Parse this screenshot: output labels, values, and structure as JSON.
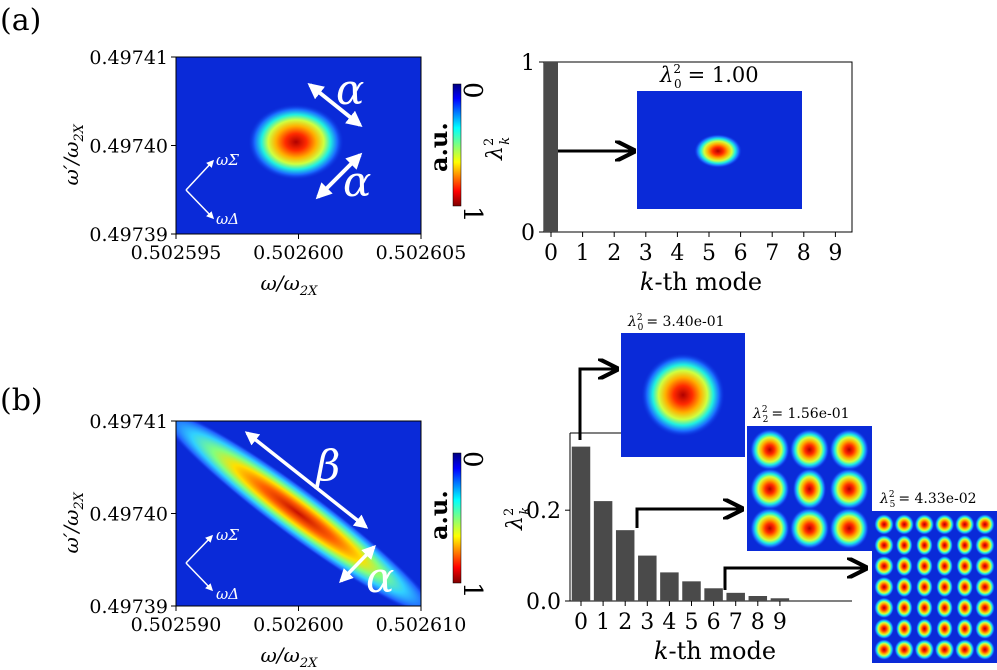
{
  "panel_labels": {
    "a": "(a)",
    "b": "(b)"
  },
  "colorbar": {
    "label": "a.u.",
    "tick_top": "0",
    "tick_bottom": "1"
  },
  "arrows": {
    "alpha": "α",
    "beta": "β"
  },
  "basis": {
    "sigma": "ωΣ",
    "delta": "ωΔ"
  },
  "axis_text": {
    "omega_x": "ω/ω",
    "omega_y": "ω′/ω",
    "sub_2X": "2X",
    "lambda": "λ",
    "lambda_sub": "k",
    "lambda_sup": "2",
    "kth_k": "k",
    "kth_rest": "-th mode"
  },
  "chart_data": [
    {
      "id": "a-left",
      "type": "heatmap",
      "xlabel": "ω/ω2X",
      "ylabel": "ω′/ω2X",
      "x_ticks": [
        "0.502595",
        "0.502600",
        "0.502605"
      ],
      "y_ticks": [
        "0.49741",
        "0.49740",
        "0.49739"
      ],
      "xlim": [
        0.502595,
        0.502605
      ],
      "ylim": [
        0.49739,
        0.49741
      ],
      "colorbar_label": "a.u."
    },
    {
      "id": "a-right",
      "type": "bar",
      "xlabel": "k-th mode",
      "ylabel": "λk2",
      "categories": [
        "0",
        "1",
        "2",
        "3",
        "4",
        "5",
        "6",
        "7",
        "8",
        "9"
      ],
      "values": [
        1.0,
        0,
        0,
        0,
        0,
        0,
        0,
        0,
        0,
        0
      ],
      "y_ticks": [
        "0",
        "1"
      ],
      "ylim": [
        0,
        1
      ],
      "inset_title": "λ02 = 1.00",
      "inset_title_parts": {
        "sub": "0",
        "value": "= 1.00"
      }
    },
    {
      "id": "b-left",
      "type": "heatmap",
      "xlabel": "ω/ω2X",
      "ylabel": "ω′/ω2X",
      "x_ticks": [
        "0.502590",
        "0.502600",
        "0.502610"
      ],
      "y_ticks": [
        "0.49741",
        "0.49740",
        "0.49739"
      ],
      "xlim": [
        0.50259,
        0.50261
      ],
      "ylim": [
        0.49739,
        0.49741
      ],
      "colorbar_label": "a.u."
    },
    {
      "id": "b-right",
      "type": "bar",
      "xlabel": "k-th mode",
      "ylabel": "λk2",
      "categories": [
        "0",
        "1",
        "2",
        "3",
        "4",
        "5",
        "6",
        "7",
        "8",
        "9"
      ],
      "values": [
        0.34,
        0.22,
        0.156,
        0.1,
        0.063,
        0.0433,
        0.028,
        0.018,
        0.011,
        0.006
      ],
      "y_ticks": [
        "0.0",
        "0.2"
      ],
      "ylim": [
        0,
        0.37
      ],
      "insets": [
        {
          "mode": 0,
          "sub": "0",
          "value": "= 3.40e-01"
        },
        {
          "mode": 2,
          "sub": "2",
          "value": "= 1.56e-01"
        },
        {
          "mode": 5,
          "sub": "5",
          "value": "= 4.33e-02"
        }
      ]
    }
  ]
}
